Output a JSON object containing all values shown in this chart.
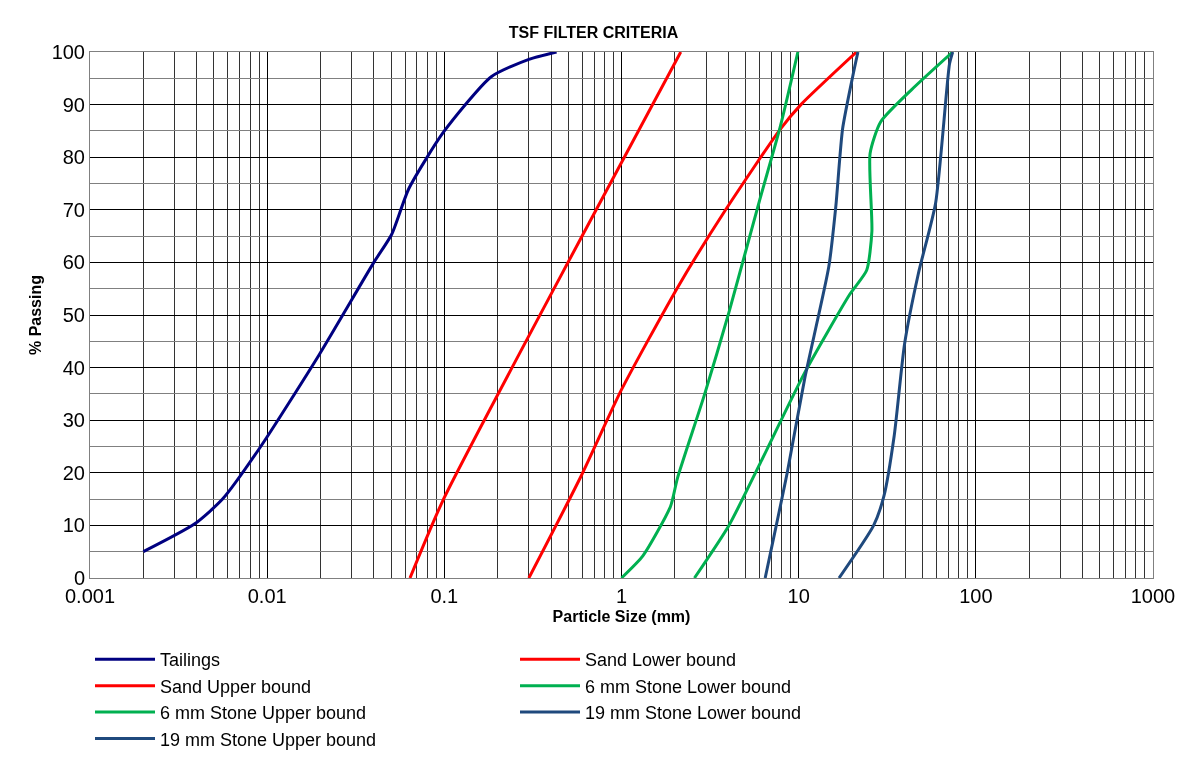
{
  "chart_data": {
    "type": "line",
    "title": "TSF FILTER CRITERIA",
    "xlabel": "Particle Size (mm)",
    "ylabel": "% Passing",
    "log": "x",
    "xlim": [
      0.001,
      1000
    ],
    "xticks": [
      0.001,
      0.01,
      0.1,
      1,
      10,
      100,
      1000
    ],
    "ylim": [
      0,
      100
    ],
    "yticks": [
      0,
      10,
      20,
      30,
      40,
      50,
      60,
      70,
      80,
      90,
      100
    ],
    "grid": true,
    "legend": "bottom",
    "marker": "none",
    "line_style": "solid",
    "series": [
      {
        "name": "Tailings",
        "color": "#000080",
        "x": [
          0.002,
          0.0039,
          0.0056,
          0.0092,
          0.0197,
          0.04,
          0.0504,
          0.063,
          0.0986,
          0.184,
          0.3,
          0.43
        ],
        "values": [
          5,
          10.3,
          15,
          25,
          42.5,
          60,
          65.3,
          74,
          84.7,
          95.3,
          98.6,
          100
        ]
      },
      {
        "name": "Sand Lower bound",
        "color": "#ff0000",
        "x": [
          0.064,
          0.099,
          0.59,
          2.16
        ],
        "values": [
          0,
          15,
          64.6,
          100
        ]
      },
      {
        "name": "Sand Upper bound",
        "color": "#ff0000",
        "x": [
          0.3,
          0.59,
          1.0,
          2.07,
          3.87,
          7.9,
          10.3,
          21.2
        ],
        "values": [
          0,
          19.3,
          35.8,
          55.2,
          70,
          85.4,
          90,
          100
        ]
      },
      {
        "name": "6 mm Stone Lower bound",
        "color": "#00b050",
        "x": [
          1.0,
          1.32,
          1.89,
          2.07,
          2.95,
          4.04,
          6.04,
          7.9,
          9.9
        ],
        "values": [
          0,
          4.2,
          13.6,
          19,
          35,
          50.5,
          72,
          86,
          100
        ]
      },
      {
        "name": "6 mm Stone Upper bound",
        "color": "#00b050",
        "x": [
          2.58,
          4.04,
          6.04,
          10.8,
          19.4,
          24.2,
          25.9,
          25.3,
          29,
          43.3,
          74
        ],
        "values": [
          0,
          10,
          21.7,
          39,
          53.9,
          58.5,
          65.9,
          80.7,
          86.7,
          92.8,
          100
        ]
      },
      {
        "name": "19 mm Stone Lower bound",
        "color": "#1f497d",
        "x": [
          6.47,
          8.65,
          10.8,
          14.8,
          16.2,
          17.7,
          20.2,
          21.6
        ],
        "values": [
          0,
          20.3,
          37.8,
          59.2,
          70.6,
          85.4,
          95.4,
          100
        ]
      },
      {
        "name": "19 mm Stone Upper bound",
        "color": "#1f497d",
        "x": [
          16.9,
          26.5,
          30.3,
          34.6,
          39.6,
          47.4,
          59.3,
          71,
          74
        ],
        "values": [
          0,
          10,
          15.6,
          27,
          44.5,
          57.9,
          71.3,
          97.7,
          100
        ]
      }
    ]
  }
}
